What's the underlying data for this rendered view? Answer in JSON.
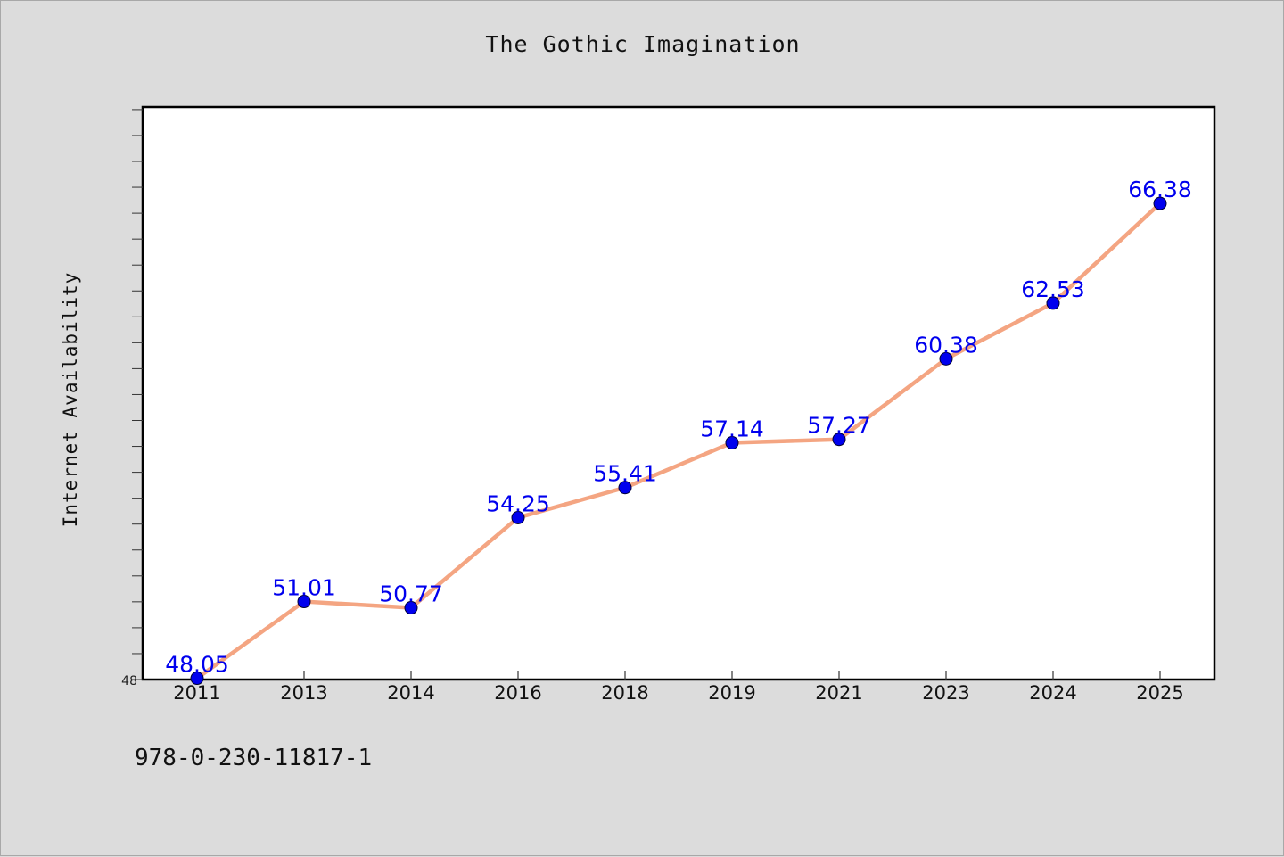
{
  "title": "The Gothic Imagination",
  "footer": "978-0-230-11817-1",
  "colors": {
    "background": "#dcdcdc",
    "plot_background": "#ffffff",
    "line": "#f4a582",
    "marker": "#0000ee",
    "data_label": "#0000ee"
  },
  "chart_data": {
    "type": "line",
    "title": "The Gothic Imagination",
    "xlabel": "",
    "ylabel": "Internet Availability",
    "categories": [
      "2011",
      "2013",
      "2014",
      "2016",
      "2018",
      "2019",
      "2021",
      "2023",
      "2024",
      "2025"
    ],
    "series": [
      {
        "values": [
          48.05,
          51.01,
          50.77,
          54.25,
          55.41,
          57.14,
          57.27,
          60.38,
          62.53,
          66.38
        ],
        "labels": [
          "48.05",
          "51.01",
          "50.77",
          "54.25",
          "55.41",
          "57.14",
          "57.27",
          "60.38",
          "62.53",
          "66.38"
        ]
      }
    ],
    "ylim": [
      48,
      70.1
    ],
    "y_tick_labels": [
      "48"
    ],
    "grid": false,
    "legend": "none"
  }
}
